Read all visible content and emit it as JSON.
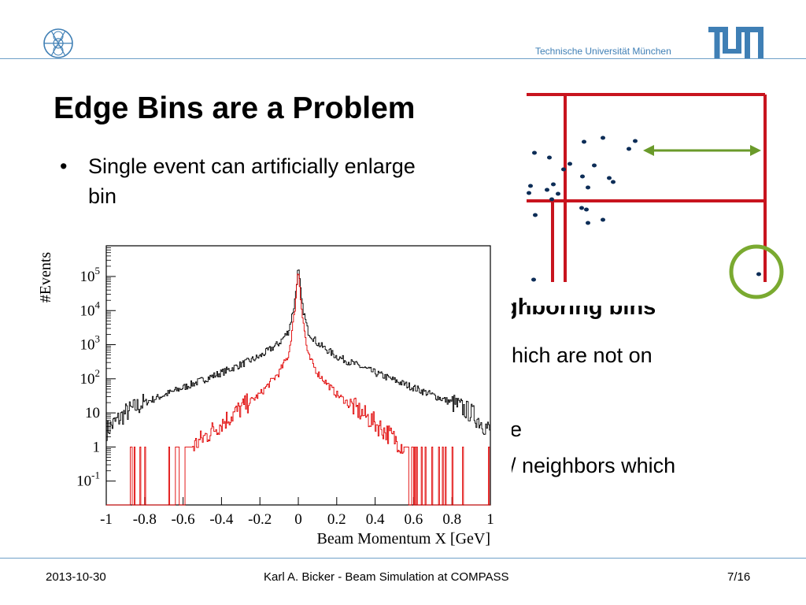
{
  "header": {
    "university": "Technische Universität München",
    "logo_icon": "tu-seal-icon",
    "tum_logo": "TUM"
  },
  "slide": {
    "title": "Edge Bins are a Problem",
    "bullets": [
      "Single event can artificially enlarge bin"
    ],
    "occluded_lines": [
      "ghboring bins",
      "hich are not on",
      "e",
      "/ neighbors which"
    ]
  },
  "figure_bins": {
    "colors": {
      "bins": "#c8141e",
      "arrow": "#6a9a2a",
      "circle": "#7aaa30",
      "dots": "#0d2d57"
    }
  },
  "chart_data": {
    "type": "line",
    "title": "",
    "xlabel": "Beam Momentum X [GeV]",
    "ylabel": "#Events",
    "xlim": [
      -1,
      1
    ],
    "ylog": true,
    "ylim_exponent": [
      -1.7,
      5.9
    ],
    "xticks": [
      "-1",
      "-0.8",
      "-0.6",
      "-0.4",
      "-0.2",
      "0",
      "0.2",
      "0.4",
      "0.6",
      "0.8",
      "1"
    ],
    "yticks": [
      {
        "label": "10-1",
        "base": "10",
        "exp": "-1",
        "value": 0.1
      },
      {
        "label": "1",
        "base": "1",
        "exp": "",
        "value": 1
      },
      {
        "label": "10",
        "base": "10",
        "exp": "",
        "value": 10
      },
      {
        "label": "10^2",
        "base": "10",
        "exp": "2",
        "value": 100
      },
      {
        "label": "10^3",
        "base": "10",
        "exp": "3",
        "value": 1000
      },
      {
        "label": "10^4",
        "base": "10",
        "exp": "4",
        "value": 10000
      },
      {
        "label": "10^5",
        "base": "10",
        "exp": "5",
        "value": 100000
      }
    ],
    "series": [
      {
        "color": "#000000",
        "x": [
          -1,
          -0.9,
          -0.8,
          -0.6,
          -0.4,
          -0.2,
          -0.1,
          -0.05,
          -0.02,
          0,
          0.02,
          0.05,
          0.1,
          0.2,
          0.4,
          0.6,
          0.8,
          0.9,
          1
        ],
        "y": [
          3,
          10,
          20,
          55,
          150,
          450,
          1100,
          2500,
          15000,
          180000,
          15000,
          2500,
          1100,
          450,
          150,
          55,
          20,
          10,
          3
        ]
      },
      {
        "color": "#e00000",
        "x": [
          -1,
          -0.9,
          -0.8,
          -0.6,
          -0.4,
          -0.2,
          -0.1,
          -0.05,
          -0.02,
          0,
          0.02,
          0.05,
          0.1,
          0.2,
          0.4,
          0.6,
          0.8,
          0.9,
          1
        ],
        "y": [
          0.03,
          0.05,
          0.1,
          0.6,
          5,
          35,
          150,
          500,
          8000,
          180000,
          8000,
          500,
          150,
          35,
          5,
          0.6,
          0.1,
          0.05,
          0.03
        ]
      }
    ]
  },
  "footer": {
    "date": "2013-10-30",
    "center": "Karl A. Bicker - Beam Simulation at COMPASS",
    "page": "7/16"
  }
}
